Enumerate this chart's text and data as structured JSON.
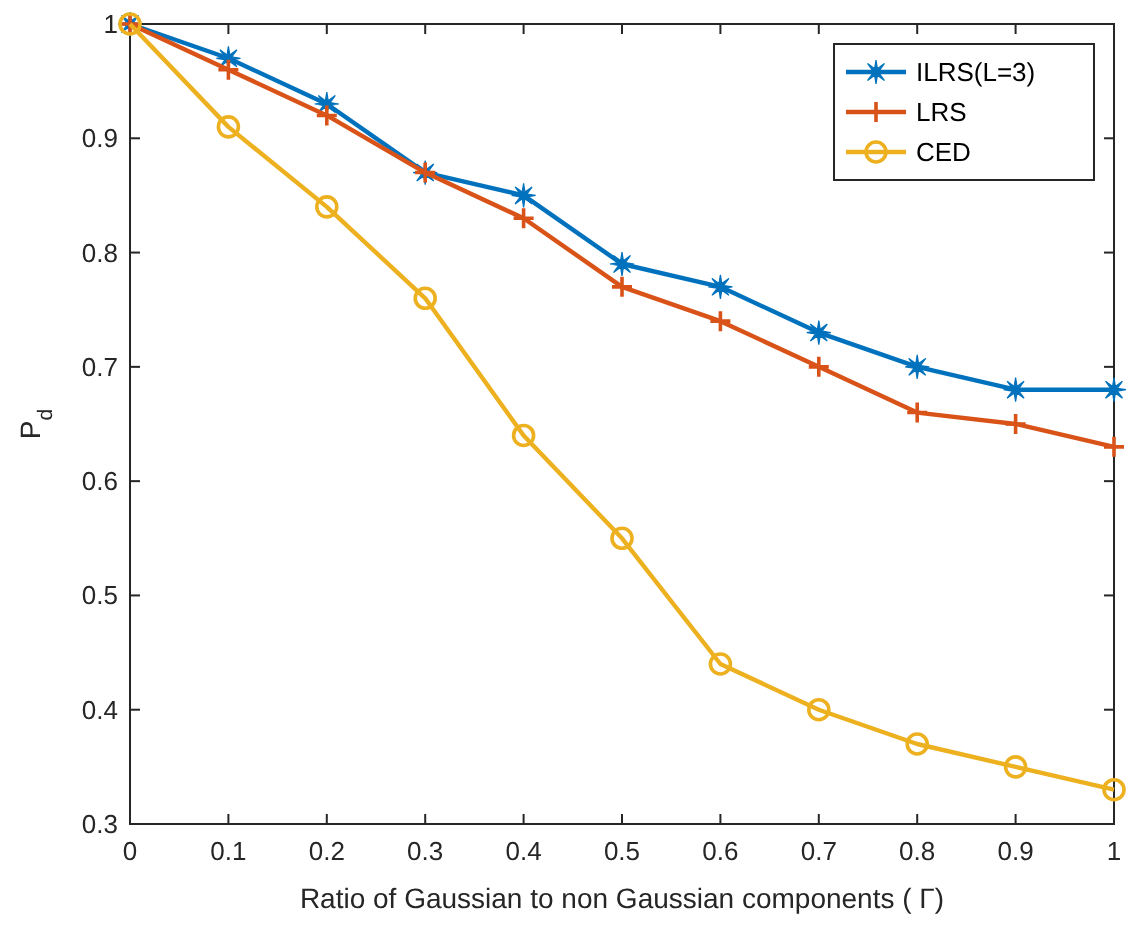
{
  "chart_data": {
    "type": "line",
    "xlabel": "Ratio of Gaussian to non Gaussian components ( Γ)",
    "ylabel": "P$_{d}$",
    "x": [
      0,
      0.1,
      0.2,
      0.3,
      0.4,
      0.5,
      0.6,
      0.7,
      0.8,
      0.9,
      1
    ],
    "xlim": [
      0,
      1
    ],
    "xticks": [
      0,
      0.1,
      0.2,
      0.3,
      0.4,
      0.5,
      0.6,
      0.7,
      0.8,
      0.9,
      1
    ],
    "ylim": [
      0.3,
      1
    ],
    "yticks": [
      0.3,
      0.4,
      0.5,
      0.6,
      0.7,
      0.8,
      0.9,
      1
    ],
    "legend": "top right",
    "line_style": "solid",
    "series": [
      {
        "name": "ILRS(L=3)",
        "color": "#0072bd",
        "marker": "star",
        "values": [
          1,
          0.97,
          0.93,
          0.87,
          0.85,
          0.79,
          0.77,
          0.73,
          0.7,
          0.68,
          0.68
        ]
      },
      {
        "name": "LRS",
        "color": "#d95319",
        "marker": "cross",
        "values": [
          1,
          0.96,
          0.92,
          0.87,
          0.83,
          0.77,
          0.74,
          0.7,
          0.66,
          0.65,
          0.63
        ]
      },
      {
        "name": "CED",
        "color": "#edb120",
        "marker": "circle",
        "values": [
          1,
          0.91,
          0.84,
          0.76,
          0.64,
          0.55,
          0.44,
          0.4,
          0.37,
          0.35,
          0.33
        ]
      }
    ]
  }
}
